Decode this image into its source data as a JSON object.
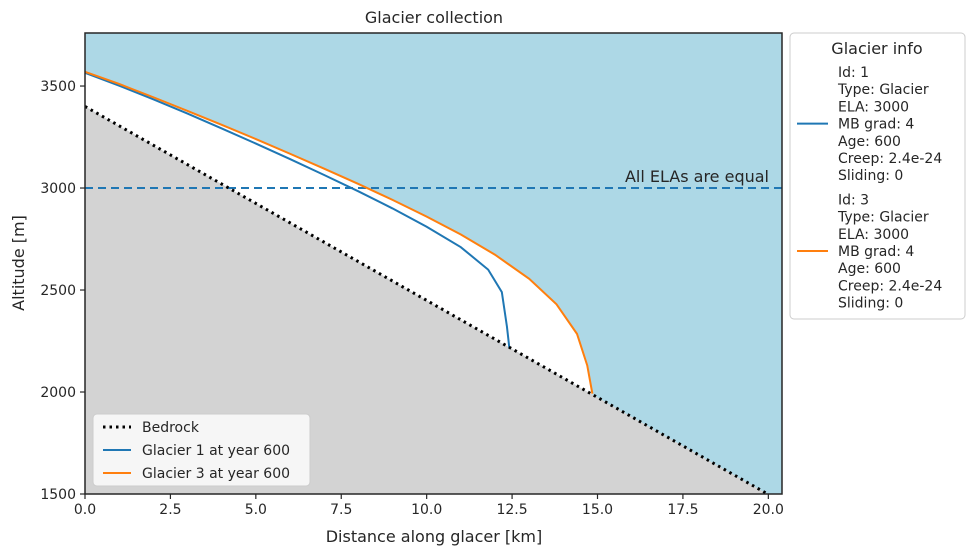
{
  "chart_data": {
    "type": "line",
    "title": "Glacier collection",
    "xlabel": "Distance along glacer [km]",
    "ylabel": "Altitude [m]",
    "xlim": [
      0,
      20.4
    ],
    "ylim": [
      1500,
      3760
    ],
    "x_ticks": [
      "0.0",
      "2.5",
      "5.0",
      "7.5",
      "10.0",
      "12.5",
      "15.0",
      "17.5",
      "20.0"
    ],
    "y_ticks": [
      "1500",
      "2000",
      "2500",
      "3000",
      "3500"
    ],
    "grid": false,
    "background": {
      "above_bedrock": "#add8e6",
      "below_bedrock": "#d3d3d3"
    },
    "ela": {
      "value": 3000,
      "label": "All ELAs are equal",
      "color": "#1f77b4"
    },
    "series": [
      {
        "name": "Bedrock",
        "color": "#000000",
        "style": "dotted",
        "x": [
          0,
          20.4
        ],
        "y": [
          3400,
          1460
        ]
      },
      {
        "name": "Glacier 1 at year 600",
        "color": "#1f77b4",
        "style": "solid",
        "x": [
          0,
          1,
          2,
          3,
          4,
          5,
          6,
          7,
          8,
          9,
          10,
          11,
          11.8,
          12.2,
          12.35,
          12.42
        ],
        "y": [
          3565,
          3502,
          3435,
          3365,
          3292,
          3218,
          3142,
          3064,
          2984,
          2900,
          2810,
          2710,
          2600,
          2490,
          2320,
          2215
        ]
      },
      {
        "name": "Glacier 3 at year 600",
        "color": "#ff7f0e",
        "style": "solid",
        "x": [
          0,
          1,
          2,
          3,
          4,
          5,
          6,
          7,
          8,
          9,
          10,
          11,
          12,
          13,
          13.8,
          14.4,
          14.7,
          14.85
        ],
        "y": [
          3570,
          3510,
          3445,
          3378,
          3310,
          3240,
          3168,
          3095,
          3020,
          2942,
          2860,
          2772,
          2673,
          2555,
          2430,
          2285,
          2130,
          1992
        ]
      }
    ],
    "legend": {
      "placement": "lower-left",
      "entries": [
        "Bedrock",
        "Glacier 1 at year 600",
        "Glacier 3 at year 600"
      ]
    }
  },
  "side_legend": {
    "title": "Glacier info",
    "placement": "outside-right",
    "entries": [
      {
        "color": "#1f77b4",
        "lines": [
          "Id: 1",
          "Type: Glacier",
          "ELA: 3000",
          "MB grad: 4",
          "Age: 600",
          "Creep: 2.4e-24",
          "Sliding: 0"
        ]
      },
      {
        "color": "#ff7f0e",
        "lines": [
          "Id: 3",
          "Type: Glacier",
          "ELA: 3000",
          "MB grad: 4",
          "Age: 600",
          "Creep: 2.4e-24",
          "Sliding: 0"
        ]
      }
    ]
  }
}
